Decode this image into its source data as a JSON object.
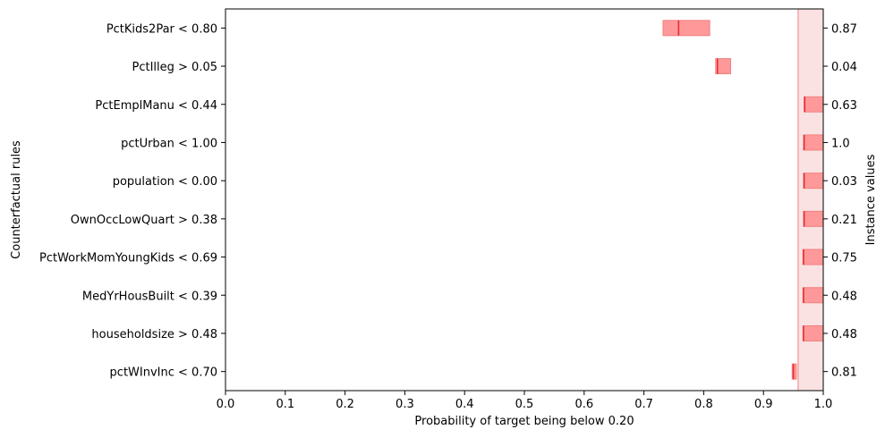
{
  "chart_data": {
    "type": "bar",
    "orientation": "horizontal",
    "xlabel": "Probability of target being below 0.20",
    "ylabel": "Counterfactual rules",
    "y2label": "Instance values",
    "xlim": [
      0.0,
      1.0
    ],
    "xticks": [
      "0.0",
      "0.1",
      "0.2",
      "0.3",
      "0.4",
      "0.5",
      "0.6",
      "0.7",
      "0.8",
      "0.9",
      "1.0"
    ],
    "grid": false,
    "base_prediction": {
      "value": 0.958,
      "interval": [
        0.958,
        1.0
      ]
    },
    "rules": [
      {
        "label": "PctKids2Par < 0.80",
        "instance_value": "0.87",
        "low": 0.732,
        "high": 0.81,
        "point": 0.758
      },
      {
        "label": "PctIlleg > 0.05",
        "instance_value": "0.04",
        "low": 0.82,
        "high": 0.845,
        "point": 0.823
      },
      {
        "label": "PctEmplManu < 0.44",
        "instance_value": "0.63",
        "low": 0.968,
        "high": 1.0,
        "point": 0.969
      },
      {
        "label": "pctUrban < 1.00",
        "instance_value": "1.0",
        "low": 0.967,
        "high": 1.0,
        "point": 0.968
      },
      {
        "label": "population < 0.00",
        "instance_value": "0.03",
        "low": 0.967,
        "high": 1.0,
        "point": 0.968
      },
      {
        "label": "OwnOccLowQuart > 0.38",
        "instance_value": "0.21",
        "low": 0.967,
        "high": 1.0,
        "point": 0.968
      },
      {
        "label": "PctWorkMomYoungKids < 0.69",
        "instance_value": "0.75",
        "low": 0.966,
        "high": 1.0,
        "point": 0.967
      },
      {
        "label": "MedYrHousBuilt < 0.39",
        "instance_value": "0.48",
        "low": 0.966,
        "high": 1.0,
        "point": 0.967
      },
      {
        "label": "householdsize > 0.48",
        "instance_value": "0.48",
        "low": 0.966,
        "high": 1.0,
        "point": 0.967
      },
      {
        "label": "pctWInvInc < 0.70",
        "instance_value": "0.81",
        "low": 0.948,
        "high": 0.955,
        "point": 0.95
      }
    ],
    "colors": {
      "interval_fill": "#ff9999",
      "interval_edge": "#f08080",
      "point_line": "#e8282f",
      "base_band": "#fbe2e2",
      "base_line": "#f4a6a6"
    }
  }
}
